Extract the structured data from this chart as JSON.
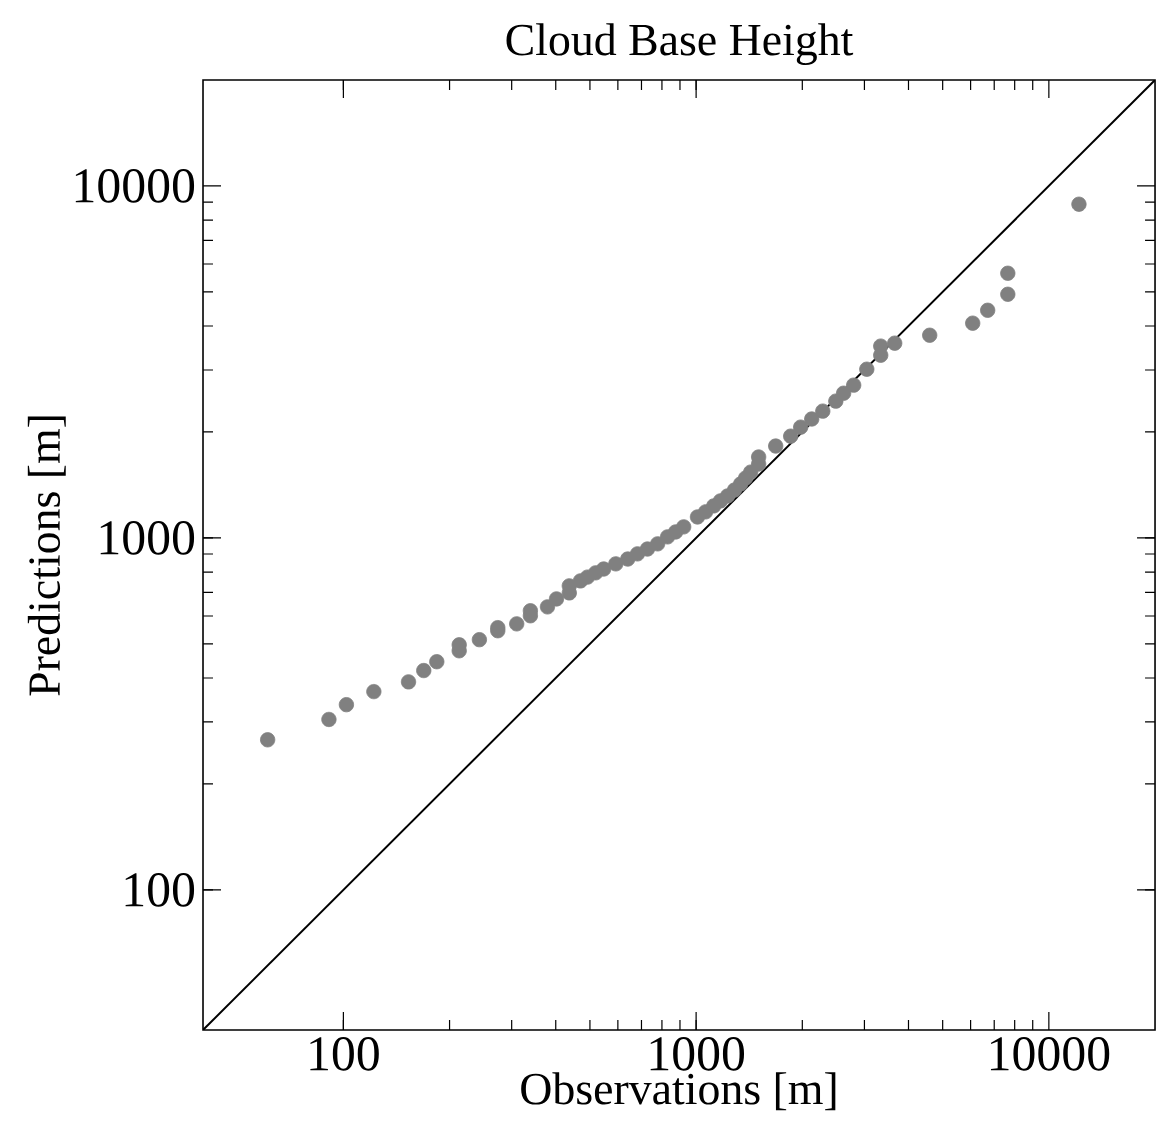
{
  "chart_data": {
    "type": "scatter",
    "title": "Cloud Base Height",
    "xlabel": "Observations [m]",
    "ylabel": "Predictions [m]",
    "xlim": [
      40,
      20000
    ],
    "ylim": [
      40,
      20000
    ],
    "xticks": [
      100,
      1000,
      10000
    ],
    "yticks": [
      100,
      1000,
      10000
    ],
    "log": "xy",
    "series": [
      {
        "marker": "circle",
        "color": "#808080",
        "x": [
          61,
          91,
          102,
          122,
          153,
          169,
          184,
          213,
          213,
          243,
          274,
          274,
          310,
          339,
          339,
          379,
          402,
          437,
          437,
          470,
          492,
          519,
          547,
          592,
          640,
          682,
          728,
          778,
          830,
          875,
          922,
          1009,
          1064,
          1122,
          1172,
          1228,
          1285,
          1337,
          1381,
          1428,
          1504,
          1504,
          1681,
          1854,
          1979,
          2127,
          2286,
          2489,
          2619,
          2797,
          3047,
          3337,
          3337,
          3656,
          4594,
          6083,
          6708,
          7650,
          7650,
          12170
        ],
        "values": [
          267,
          305,
          336,
          366,
          390,
          420,
          445,
          478,
          497,
          514,
          545,
          556,
          570,
          601,
          621,
          637,
          671,
          698,
          731,
          755,
          774,
          796,
          816,
          844,
          871,
          901,
          930,
          962,
          1007,
          1040,
          1075,
          1147,
          1186,
          1233,
          1274,
          1316,
          1368,
          1423,
          1479,
          1538,
          1622,
          1698,
          1824,
          1946,
          2064,
          2177,
          2292,
          2447,
          2577,
          2717,
          3015,
          3304,
          3507,
          3575,
          3766,
          4074,
          4433,
          4922,
          5648,
          8871
        ]
      },
      {
        "type": "line",
        "marker": "none",
        "color": "#000000",
        "x": [
          40,
          20000
        ],
        "values": [
          40,
          20000
        ]
      }
    ]
  }
}
